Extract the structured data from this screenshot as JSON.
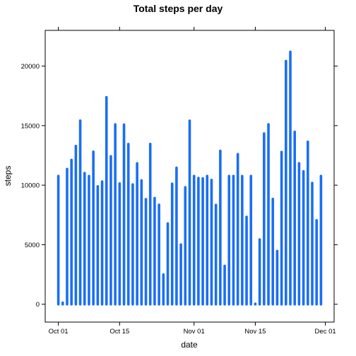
{
  "chart_data": {
    "type": "bar",
    "title": "Total steps per day",
    "xlabel": "date",
    "ylabel": "steps",
    "color": "#1a6ef5",
    "xlim": [
      "2012-09-28",
      "2012-12-03"
    ],
    "ylim": [
      -1500,
      23000
    ],
    "x_ticks": [
      {
        "date": "2012-10-01",
        "label": "Oct 01"
      },
      {
        "date": "2012-10-15",
        "label": "Oct 15"
      },
      {
        "date": "2012-11-01",
        "label": "Nov 01"
      },
      {
        "date": "2012-11-15",
        "label": "Nov 15"
      },
      {
        "date": "2012-12-01",
        "label": "Dec 01"
      }
    ],
    "y_ticks": [
      0,
      5000,
      10000,
      15000,
      20000
    ],
    "grid": false,
    "x": [
      "2012-10-01",
      "2012-10-02",
      "2012-10-03",
      "2012-10-04",
      "2012-10-05",
      "2012-10-06",
      "2012-10-07",
      "2012-10-08",
      "2012-10-09",
      "2012-10-10",
      "2012-10-11",
      "2012-10-12",
      "2012-10-13",
      "2012-10-14",
      "2012-10-15",
      "2012-10-16",
      "2012-10-17",
      "2012-10-18",
      "2012-10-19",
      "2012-10-20",
      "2012-10-21",
      "2012-10-22",
      "2012-10-23",
      "2012-10-24",
      "2012-10-25",
      "2012-10-26",
      "2012-10-27",
      "2012-10-28",
      "2012-10-29",
      "2012-10-30",
      "2012-10-31",
      "2012-11-01",
      "2012-11-02",
      "2012-11-03",
      "2012-11-04",
      "2012-11-05",
      "2012-11-06",
      "2012-11-07",
      "2012-11-08",
      "2012-11-09",
      "2012-11-10",
      "2012-11-11",
      "2012-11-12",
      "2012-11-13",
      "2012-11-14",
      "2012-11-15",
      "2012-11-16",
      "2012-11-17",
      "2012-11-18",
      "2012-11-19",
      "2012-11-20",
      "2012-11-21",
      "2012-11-22",
      "2012-11-23",
      "2012-11-24",
      "2012-11-25",
      "2012-11-26",
      "2012-11-27",
      "2012-11-28",
      "2012-11-29",
      "2012-11-30"
    ],
    "values": [
      10766,
      126,
      11352,
      12116,
      13294,
      15420,
      11015,
      10766,
      12811,
      9900,
      10304,
      17382,
      12426,
      15098,
      10139,
      15084,
      13452,
      10056,
      11829,
      10395,
      8821,
      13460,
      8918,
      8355,
      2492,
      6778,
      10119,
      11458,
      5018,
      9819,
      15414,
      10766,
      10600,
      10571,
      10766,
      10439,
      8334,
      12883,
      3219,
      10766,
      10766,
      12608,
      10765,
      7336,
      10766,
      41,
      5441,
      14339,
      15110,
      8841,
      4472,
      12787,
      20427,
      21194,
      14478,
      11834,
      11162,
      13646,
      10183,
      7047,
      10766
    ]
  }
}
